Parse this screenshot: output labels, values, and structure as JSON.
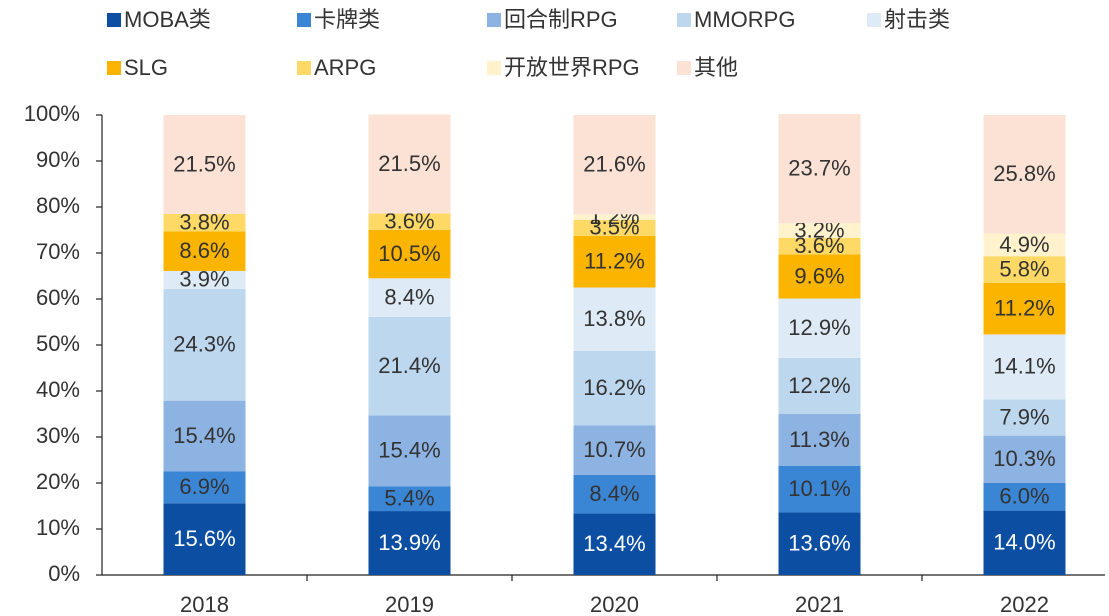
{
  "chart_data": {
    "type": "stacked_bar",
    "categories": [
      "2018",
      "2019",
      "2020",
      "2021",
      "2022"
    ],
    "series": [
      {
        "name": "MOBA类",
        "color": "#0b4ea2",
        "label_color": "#ffffff",
        "values": [
          15.6,
          13.9,
          13.4,
          13.6,
          14.0
        ],
        "value_labels": [
          "15.6%",
          "13.9%",
          "13.4%",
          "13.6%",
          "14.0%"
        ]
      },
      {
        "name": "卡牌类",
        "color": "#3a86d4",
        "label_color": "#333333",
        "values": [
          6.9,
          5.4,
          8.4,
          10.1,
          6.0
        ],
        "value_labels": [
          "6.9%",
          "5.4%",
          "8.4%",
          "10.1%",
          "6.0%"
        ]
      },
      {
        "name": "回合制RPG",
        "color": "#8db3e2",
        "label_color": "#333333",
        "values": [
          15.4,
          15.4,
          10.7,
          11.3,
          10.3
        ],
        "value_labels": [
          "15.4%",
          "15.4%",
          "10.7%",
          "11.3%",
          "10.3%"
        ]
      },
      {
        "name": "MMORPG",
        "color": "#bdd7ee",
        "label_color": "#333333",
        "values": [
          24.3,
          21.4,
          16.2,
          12.2,
          7.9
        ],
        "value_labels": [
          "24.3%",
          "21.4%",
          "16.2%",
          "12.2%",
          "7.9%"
        ]
      },
      {
        "name": "射击类",
        "color": "#deebf7",
        "label_color": "#333333",
        "values": [
          3.9,
          8.4,
          13.8,
          12.9,
          14.1
        ],
        "value_labels": [
          "3.9%",
          "8.4%",
          "13.8%",
          "12.9%",
          "14.1%"
        ]
      },
      {
        "name": "SLG",
        "color": "#fbb400",
        "label_color": "#333333",
        "values": [
          8.6,
          10.5,
          11.2,
          9.6,
          11.2
        ],
        "value_labels": [
          "8.6%",
          "10.5%",
          "11.2%",
          "9.6%",
          "11.2%"
        ]
      },
      {
        "name": "ARPG",
        "color": "#ffd966",
        "label_color": "#333333",
        "values": [
          3.8,
          3.6,
          3.5,
          3.6,
          5.8
        ],
        "value_labels": [
          "3.8%",
          "3.6%",
          "3.5%",
          "3.6%",
          "5.8%"
        ]
      },
      {
        "name": "开放世界RPG",
        "color": "#fff2cc",
        "label_color": "#333333",
        "values": [
          null,
          null,
          1.2,
          3.2,
          4.9
        ],
        "value_labels": [
          null,
          null,
          "1.2%",
          "3.2%",
          "4.9%"
        ]
      },
      {
        "name": "其他",
        "color": "#fbe2d5",
        "label_color": "#333333",
        "values": [
          21.5,
          21.5,
          21.6,
          23.7,
          25.8
        ],
        "value_labels": [
          "21.5%",
          "21.5%",
          "21.6%",
          "23.7%",
          "25.8%"
        ]
      }
    ],
    "ylim": [
      0,
      100
    ],
    "yticks": [
      {
        "value": 0,
        "label": "0%"
      },
      {
        "value": 10,
        "label": "10%"
      },
      {
        "value": 20,
        "label": "20%"
      },
      {
        "value": 30,
        "label": "30%"
      },
      {
        "value": 40,
        "label": "40%"
      },
      {
        "value": 50,
        "label": "50%"
      },
      {
        "value": 60,
        "label": "60%"
      },
      {
        "value": 70,
        "label": "70%"
      },
      {
        "value": 80,
        "label": "80%"
      },
      {
        "value": 90,
        "label": "90%"
      },
      {
        "value": 100,
        "label": "100%"
      }
    ],
    "legend": "top",
    "grid": false
  }
}
